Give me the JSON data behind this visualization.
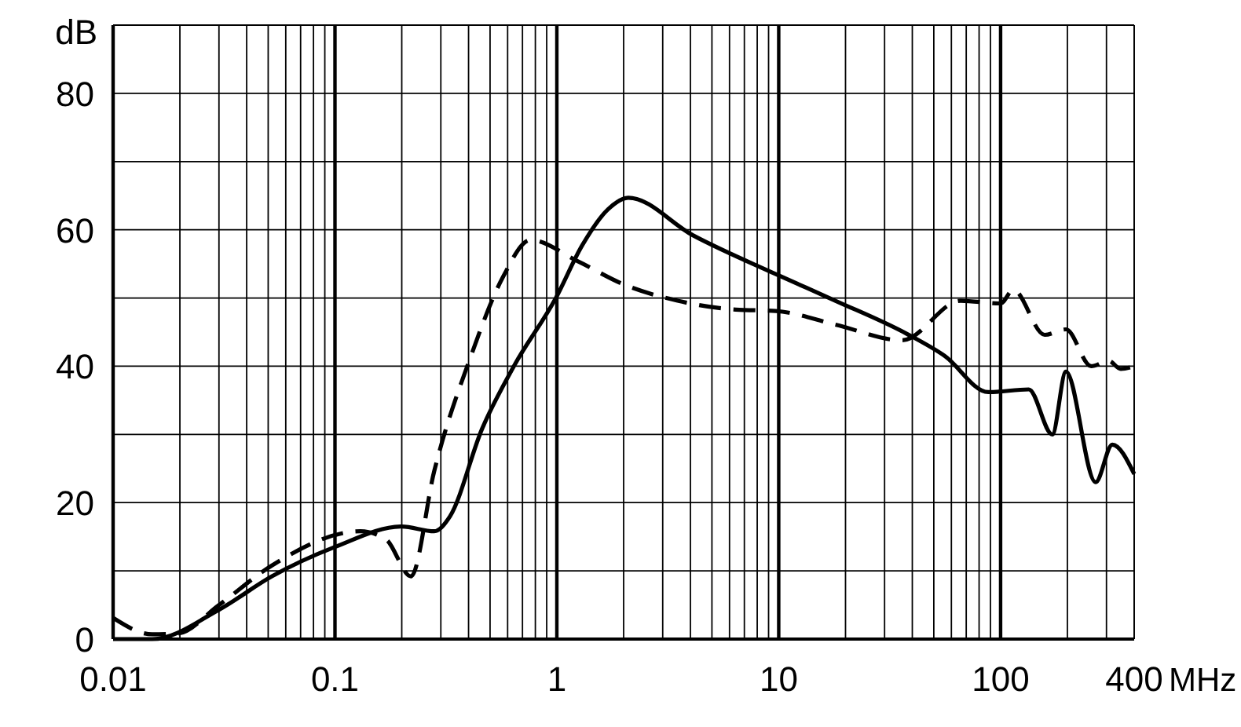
{
  "chart_data": {
    "type": "line",
    "ylabel": "dB",
    "xlabel": "MHz",
    "log": "x",
    "grid": true,
    "xlim": [
      0.01,
      400
    ],
    "ylim": [
      0,
      90
    ],
    "xticks": [
      0.01,
      {
        "value": 0.02,
        "label": null
      },
      {
        "value": 0.03,
        "label": null
      },
      {
        "value": 0.04,
        "label": null
      },
      {
        "value": 0.05,
        "label": null
      },
      {
        "value": 0.06,
        "label": null
      },
      {
        "value": 0.07,
        "label": null
      },
      {
        "value": 0.08,
        "label": null
      },
      {
        "value": 0.09,
        "label": null
      },
      0.1,
      {
        "value": 0.2,
        "label": null
      },
      {
        "value": 0.3,
        "label": null
      },
      {
        "value": 0.4,
        "label": null
      },
      {
        "value": 0.5,
        "label": null
      },
      {
        "value": 0.6,
        "label": null
      },
      {
        "value": 0.7,
        "label": null
      },
      {
        "value": 0.8,
        "label": null
      },
      {
        "value": 0.9,
        "label": null
      },
      1,
      {
        "value": 2,
        "label": null
      },
      {
        "value": 3,
        "label": null
      },
      {
        "value": 4,
        "label": null
      },
      {
        "value": 5,
        "label": null
      },
      {
        "value": 6,
        "label": null
      },
      {
        "value": 7,
        "label": null
      },
      {
        "value": 8,
        "label": null
      },
      {
        "value": 9,
        "label": null
      },
      10,
      {
        "value": 20,
        "label": null
      },
      {
        "value": 30,
        "label": null
      },
      {
        "value": 40,
        "label": null
      },
      {
        "value": 50,
        "label": null
      },
      {
        "value": 60,
        "label": null
      },
      {
        "value": 70,
        "label": null
      },
      {
        "value": 80,
        "label": null
      },
      {
        "value": 90,
        "label": null
      },
      100,
      {
        "value": 200,
        "label": null
      },
      {
        "value": 300,
        "label": null
      },
      400
    ],
    "yticks": [
      0,
      {
        "value": 10,
        "label": null
      },
      20,
      {
        "value": 30,
        "label": null
      },
      40,
      {
        "value": 50,
        "label": null
      },
      60,
      {
        "value": 70,
        "label": null
      },
      80,
      {
        "value": 90,
        "label": null
      }
    ],
    "series": [
      {
        "color": "#000000",
        "line_style": "solid",
        "x": [
          0.01,
          0.015,
          0.03,
          0.052,
          0.1,
          0.2,
          0.28,
          0.33,
          0.46,
          0.64,
          0.99,
          1.3,
          1.7,
          2.1,
          4.1,
          9.7,
          18,
          38,
          56,
          88,
          134,
          171,
          197,
          268,
          319,
          400
        ],
        "values": [
          0,
          0,
          4.3,
          9.2,
          13.5,
          16.5,
          15.8,
          18,
          30.8,
          40,
          50,
          57.7,
          63,
          64.7,
          59.2,
          53.5,
          49.6,
          44.7,
          41.5,
          36.2,
          36.6,
          30,
          39.2,
          23,
          28.5,
          24.2
        ]
      },
      {
        "color": "#000000",
        "line_style": "dashed",
        "x": [
          0.01,
          0.015,
          0.0195,
          0.03,
          0.052,
          0.13,
          0.17,
          0.22,
          0.28,
          0.41,
          0.57,
          0.76,
          1.24,
          2,
          3.5,
          6.4,
          9.7,
          18,
          36,
          66,
          100,
          114,
          158,
          197,
          256,
          307,
          348,
          400
        ],
        "values": [
          3.1,
          0.7,
          0.8,
          5,
          10.8,
          15.8,
          14.6,
          9.2,
          24.6,
          41.5,
          53,
          58.5,
          55.4,
          52,
          49.6,
          48.3,
          48.1,
          46.1,
          43.8,
          49.6,
          49.2,
          51.2,
          44.6,
          45.4,
          40,
          40.8,
          39.6,
          40
        ]
      }
    ]
  }
}
